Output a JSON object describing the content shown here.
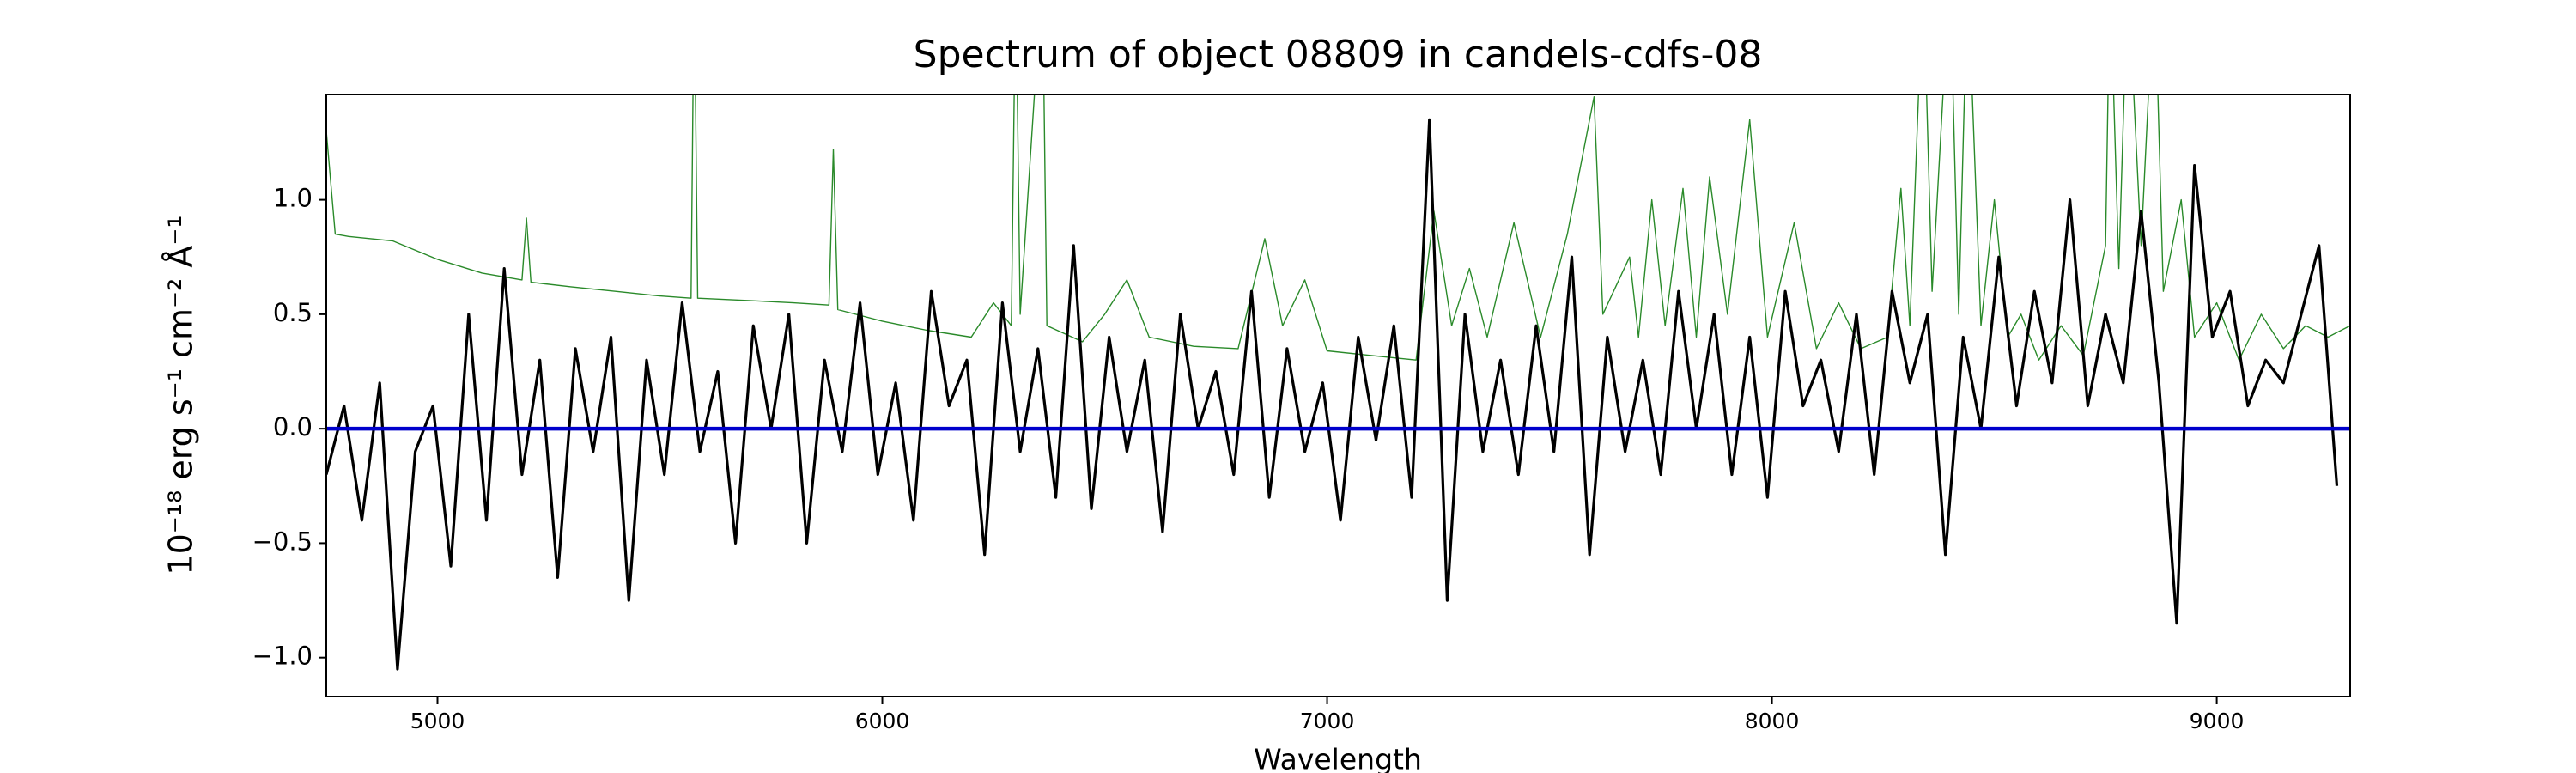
{
  "chart_data": {
    "type": "line",
    "title": "Spectrum of object 08809 in candels-cdfs-08",
    "x_label": "Wavelength",
    "y_label": "10⁻¹⁸ erg s⁻¹ cm⁻² Å⁻¹",
    "xlim": [
      4750,
      9300
    ],
    "ylim": [
      -1.17,
      1.46
    ],
    "xticks": [
      5000,
      6000,
      7000,
      8000,
      9000
    ],
    "yticks": [
      {
        "value": -1.0,
        "label": "−1.0"
      },
      {
        "value": -0.5,
        "label": "−0.5"
      },
      {
        "value": 0.0,
        "label": "0.0"
      },
      {
        "value": 0.5,
        "label": "0.5"
      },
      {
        "value": 1.0,
        "label": "1.0"
      }
    ],
    "grid": false,
    "series": [
      {
        "color": "#2a8a2a",
        "x": [
          4750,
          4770,
          4800,
          4900,
          5000,
          5100,
          5190,
          5200,
          5210,
          5300,
          5400,
          5500,
          5570,
          5577,
          5585,
          5700,
          5800,
          5880,
          5890,
          5900,
          6000,
          6100,
          6200,
          6250,
          6290,
          6300,
          6310,
          6360,
          6370,
          6450,
          6500,
          6550,
          6600,
          6700,
          6800,
          6860,
          6900,
          6950,
          7000,
          7100,
          7200,
          7240,
          7280,
          7320,
          7360,
          7420,
          7480,
          7540,
          7600,
          7620,
          7680,
          7700,
          7730,
          7760,
          7800,
          7830,
          7860,
          7900,
          7950,
          7990,
          8050,
          8100,
          8150,
          8200,
          8260,
          8290,
          8310,
          8340,
          8360,
          8400,
          8420,
          8440,
          8470,
          8500,
          8530,
          8560,
          8600,
          8650,
          8700,
          8750,
          8760,
          8780,
          8800,
          8830,
          8860,
          8880,
          8920,
          8950,
          9000,
          9050,
          9100,
          9150,
          9200,
          9250,
          9300
        ],
        "values": [
          1.3,
          0.85,
          0.84,
          0.82,
          0.74,
          0.68,
          0.65,
          0.92,
          0.64,
          0.62,
          0.6,
          0.58,
          0.57,
          2.0,
          0.57,
          0.56,
          0.55,
          0.54,
          1.22,
          0.52,
          0.47,
          0.43,
          0.4,
          0.55,
          0.45,
          2.0,
          0.5,
          2.0,
          0.45,
          0.38,
          0.5,
          0.65,
          0.4,
          0.36,
          0.35,
          0.83,
          0.45,
          0.65,
          0.34,
          0.32,
          0.3,
          0.95,
          0.45,
          0.7,
          0.4,
          0.9,
          0.4,
          0.85,
          1.45,
          0.5,
          0.75,
          0.4,
          1.0,
          0.45,
          1.05,
          0.4,
          1.1,
          0.5,
          1.35,
          0.4,
          0.9,
          0.35,
          0.55,
          0.35,
          0.4,
          1.05,
          0.45,
          2.0,
          0.6,
          2.0,
          0.5,
          2.0,
          0.45,
          1.0,
          0.4,
          0.5,
          0.3,
          0.45,
          0.32,
          0.8,
          2.0,
          0.7,
          2.0,
          0.8,
          2.0,
          0.6,
          1.0,
          0.4,
          0.55,
          0.3,
          0.5,
          0.35,
          0.45,
          0.4,
          0.45
        ]
      },
      {
        "color": "#000000",
        "x": [
          4750,
          4790,
          4830,
          4870,
          4910,
          4950,
          4990,
          5030,
          5070,
          5110,
          5150,
          5190,
          5230,
          5270,
          5310,
          5350,
          5390,
          5430,
          5470,
          5510,
          5550,
          5590,
          5630,
          5670,
          5710,
          5750,
          5790,
          5830,
          5870,
          5910,
          5950,
          5990,
          6030,
          6070,
          6110,
          6150,
          6190,
          6230,
          6270,
          6310,
          6350,
          6390,
          6430,
          6470,
          6510,
          6550,
          6590,
          6630,
          6670,
          6710,
          6750,
          6790,
          6830,
          6870,
          6910,
          6950,
          6990,
          7030,
          7070,
          7110,
          7150,
          7190,
          7230,
          7270,
          7310,
          7350,
          7390,
          7430,
          7470,
          7510,
          7550,
          7590,
          7630,
          7670,
          7710,
          7750,
          7790,
          7830,
          7870,
          7910,
          7950,
          7990,
          8030,
          8070,
          8110,
          8150,
          8190,
          8230,
          8270,
          8310,
          8350,
          8390,
          8430,
          8470,
          8510,
          8550,
          8590,
          8630,
          8670,
          8710,
          8750,
          8790,
          8830,
          8870,
          8910,
          8950,
          8990,
          9030,
          9070,
          9110,
          9150,
          9190,
          9230,
          9270
        ],
        "values": [
          -0.2,
          0.1,
          -0.4,
          0.2,
          -1.05,
          -0.1,
          0.1,
          -0.6,
          0.5,
          -0.4,
          0.7,
          -0.2,
          0.3,
          -0.65,
          0.35,
          -0.1,
          0.4,
          -0.75,
          0.3,
          -0.2,
          0.55,
          -0.1,
          0.25,
          -0.5,
          0.45,
          0.0,
          0.5,
          -0.5,
          0.3,
          -0.1,
          0.55,
          -0.2,
          0.2,
          -0.4,
          0.6,
          0.1,
          0.3,
          -0.55,
          0.55,
          -0.1,
          0.35,
          -0.3,
          0.8,
          -0.35,
          0.4,
          -0.1,
          0.3,
          -0.45,
          0.5,
          0.0,
          0.25,
          -0.2,
          0.6,
          -0.3,
          0.35,
          -0.1,
          0.2,
          -0.4,
          0.4,
          -0.05,
          0.45,
          -0.3,
          1.35,
          -0.75,
          0.5,
          -0.1,
          0.3,
          -0.2,
          0.45,
          -0.1,
          0.75,
          -0.55,
          0.4,
          -0.1,
          0.3,
          -0.2,
          0.6,
          0.0,
          0.5,
          -0.2,
          0.4,
          -0.3,
          0.6,
          0.1,
          0.3,
          -0.1,
          0.5,
          -0.2,
          0.6,
          0.2,
          0.5,
          -0.55,
          0.4,
          0.0,
          0.75,
          0.1,
          0.6,
          0.2,
          1.0,
          0.1,
          0.5,
          0.2,
          0.95,
          0.2,
          -0.85,
          1.15,
          0.4,
          0.6,
          0.1,
          0.3,
          0.2,
          0.5,
          0.8,
          -0.25
        ]
      },
      {
        "color": "#0000cc",
        "x": [
          4750,
          9300
        ],
        "values": [
          0,
          0
        ]
      }
    ]
  }
}
